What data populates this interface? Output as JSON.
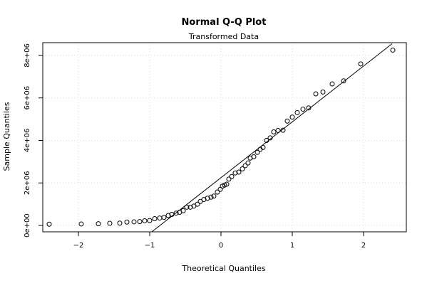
{
  "chart_data": {
    "type": "scatter",
    "title": "Normal Q-Q Plot",
    "subtitle": "Transformed Data",
    "xlabel": "Theoretical Quantiles",
    "ylabel": "Sample Quantiles",
    "xlim": [
      -2.5,
      2.6
    ],
    "ylim": [
      -300000,
      8600000
    ],
    "x_ticks": [
      -2,
      -1,
      0,
      1,
      2
    ],
    "x_tick_labels": [
      "−2",
      "−1",
      "0",
      "1",
      "2"
    ],
    "y_ticks": [
      0,
      2000000,
      4000000,
      6000000,
      8000000
    ],
    "y_tick_labels": [
      "0e+00",
      "2e+06",
      "4e+06",
      "6e+06",
      "8e+06"
    ],
    "grid": true,
    "reference_line": {
      "x1": -0.97,
      "y1": -300000,
      "x2": 2.4,
      "y2": 8550000
    },
    "points": [
      {
        "x": -2.41,
        "y": 60000
      },
      {
        "x": -1.96,
        "y": 70000
      },
      {
        "x": -1.72,
        "y": 80000
      },
      {
        "x": -1.56,
        "y": 100000
      },
      {
        "x": -1.42,
        "y": 110000
      },
      {
        "x": -1.32,
        "y": 160000
      },
      {
        "x": -1.22,
        "y": 170000
      },
      {
        "x": -1.14,
        "y": 180000
      },
      {
        "x": -1.07,
        "y": 220000
      },
      {
        "x": -1.0,
        "y": 230000
      },
      {
        "x": -0.93,
        "y": 320000
      },
      {
        "x": -0.86,
        "y": 350000
      },
      {
        "x": -0.8,
        "y": 380000
      },
      {
        "x": -0.74,
        "y": 470000
      },
      {
        "x": -0.69,
        "y": 520000
      },
      {
        "x": -0.63,
        "y": 580000
      },
      {
        "x": -0.58,
        "y": 620000
      },
      {
        "x": -0.53,
        "y": 690000
      },
      {
        "x": -0.48,
        "y": 860000
      },
      {
        "x": -0.43,
        "y": 860000
      },
      {
        "x": -0.38,
        "y": 910000
      },
      {
        "x": -0.33,
        "y": 1000000
      },
      {
        "x": -0.29,
        "y": 1130000
      },
      {
        "x": -0.24,
        "y": 1220000
      },
      {
        "x": -0.19,
        "y": 1280000
      },
      {
        "x": -0.14,
        "y": 1330000
      },
      {
        "x": -0.1,
        "y": 1380000
      },
      {
        "x": -0.05,
        "y": 1570000
      },
      {
        "x": -0.01,
        "y": 1700000
      },
      {
        "x": 0.02,
        "y": 1850000
      },
      {
        "x": 0.05,
        "y": 1900000
      },
      {
        "x": 0.08,
        "y": 1940000
      },
      {
        "x": 0.11,
        "y": 2180000
      },
      {
        "x": 0.15,
        "y": 2300000
      },
      {
        "x": 0.2,
        "y": 2470000
      },
      {
        "x": 0.25,
        "y": 2510000
      },
      {
        "x": 0.3,
        "y": 2660000
      },
      {
        "x": 0.34,
        "y": 2810000
      },
      {
        "x": 0.38,
        "y": 2940000
      },
      {
        "x": 0.41,
        "y": 3170000
      },
      {
        "x": 0.46,
        "y": 3230000
      },
      {
        "x": 0.51,
        "y": 3440000
      },
      {
        "x": 0.55,
        "y": 3580000
      },
      {
        "x": 0.59,
        "y": 3670000
      },
      {
        "x": 0.64,
        "y": 4000000
      },
      {
        "x": 0.69,
        "y": 4120000
      },
      {
        "x": 0.74,
        "y": 4400000
      },
      {
        "x": 0.8,
        "y": 4470000
      },
      {
        "x": 0.87,
        "y": 4480000
      },
      {
        "x": 0.93,
        "y": 4910000
      },
      {
        "x": 1.0,
        "y": 5100000
      },
      {
        "x": 1.07,
        "y": 5310000
      },
      {
        "x": 1.15,
        "y": 5470000
      },
      {
        "x": 1.23,
        "y": 5530000
      },
      {
        "x": 1.33,
        "y": 6190000
      },
      {
        "x": 1.43,
        "y": 6280000
      },
      {
        "x": 1.56,
        "y": 6660000
      },
      {
        "x": 1.72,
        "y": 6800000
      },
      {
        "x": 1.96,
        "y": 7600000
      },
      {
        "x": 2.41,
        "y": 8250000
      }
    ]
  }
}
